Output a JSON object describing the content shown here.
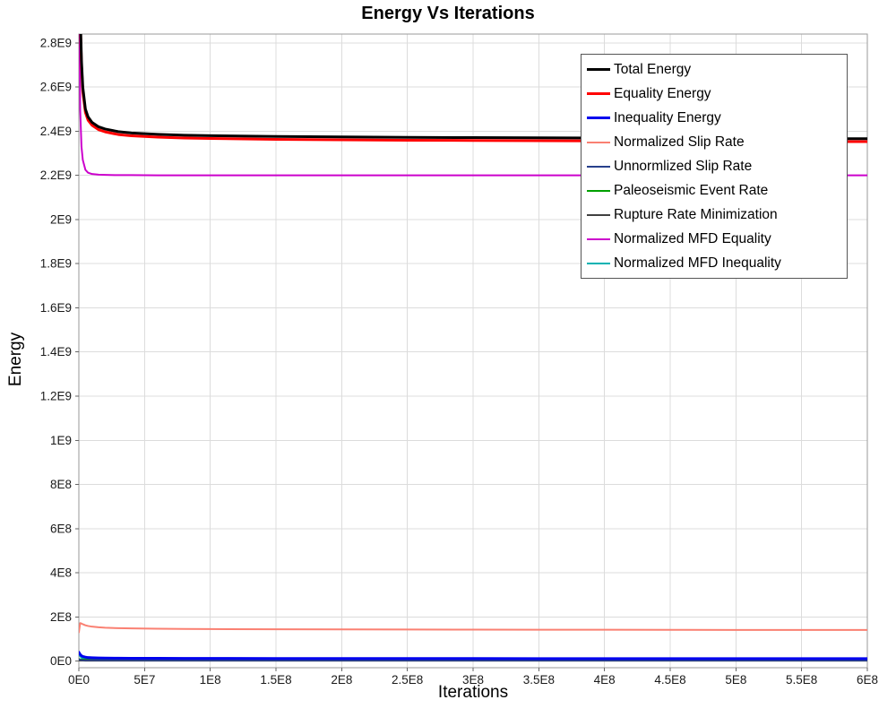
{
  "chart_data": {
    "type": "line",
    "title": "Energy Vs Iterations",
    "xlabel": "Iterations",
    "ylabel": "Energy",
    "xlim": [
      0,
      600000000.0
    ],
    "ylim": [
      -30000000.0,
      2840000000.0
    ],
    "grid": true,
    "legend_position": "top-right-inside",
    "x_ticks": {
      "values": [
        0,
        50000000.0,
        100000000.0,
        150000000.0,
        200000000.0,
        250000000.0,
        300000000.0,
        350000000.0,
        400000000.0,
        450000000.0,
        500000000.0,
        550000000.0,
        600000000.0
      ],
      "labels": [
        "0E0",
        "5E7",
        "1E8",
        "1.5E8",
        "2E8",
        "2.5E8",
        "3E8",
        "3.5E8",
        "4E8",
        "4.5E8",
        "5E8",
        "5.5E8",
        "6E8"
      ]
    },
    "y_ticks": {
      "values": [
        0,
        200000000.0,
        400000000.0,
        600000000.0,
        800000000.0,
        1000000000.0,
        1200000000.0,
        1400000000.0,
        1600000000.0,
        1800000000.0,
        2000000000.0,
        2200000000.0,
        2400000000.0,
        2600000000.0,
        2800000000.0
      ],
      "labels": [
        "0E0",
        "2E8",
        "4E8",
        "6E8",
        "8E8",
        "1E9",
        "1.2E9",
        "1.4E9",
        "1.6E9",
        "1.8E9",
        "2E9",
        "2.2E9",
        "2.4E9",
        "2.6E9",
        "2.8E9"
      ]
    },
    "x": [
      0,
      1000000.0,
      2000000.0,
      3000000.0,
      5000000.0,
      7000000.0,
      10000000.0,
      15000000.0,
      20000000.0,
      30000000.0,
      40000000.0,
      60000000.0,
      80000000.0,
      100000000.0,
      150000000.0,
      200000000.0,
      250000000.0,
      300000000.0,
      350000000.0,
      400000000.0,
      450000000.0,
      500000000.0,
      550000000.0,
      600000000.0
    ],
    "series": [
      {
        "name": "Total Energy",
        "color": "#000000",
        "width": 3,
        "values": [
          3400000000.0,
          2950000000.0,
          2720000000.0,
          2600000000.0,
          2500000000.0,
          2465000000.0,
          2440000000.0,
          2420000000.0,
          2410000000.0,
          2398000000.0,
          2392000000.0,
          2386000000.0,
          2382000000.0,
          2380000000.0,
          2376000000.0,
          2374000000.0,
          2372000000.0,
          2371000000.0,
          2370000000.0,
          2369000000.0,
          2368000000.0,
          2367000000.0,
          2366000000.0,
          2366000000.0
        ]
      },
      {
        "name": "Equality Energy",
        "color": "#ff0000",
        "width": 3,
        "values": [
          3360000000.0,
          2920000000.0,
          2700000000.0,
          2580000000.0,
          2485000000.0,
          2450000000.0,
          2427000000.0,
          2407000000.0,
          2397000000.0,
          2385000000.0,
          2379000000.0,
          2373000000.0,
          2369000000.0,
          2367000000.0,
          2363000000.0,
          2361000000.0,
          2359000000.0,
          2358000000.0,
          2357000000.0,
          2356000000.0,
          2355000000.0,
          2354000000.0,
          2353000000.0,
          2353000000.0
        ]
      },
      {
        "name": "Inequality Energy",
        "color": "#0000ee",
        "width": 3,
        "values": [
          40000000.0,
          30000000.0,
          24000000.0,
          21000000.0,
          18000000.0,
          16000000.0,
          15000000.0,
          14000000.0,
          13500000.0,
          13000000.0,
          12800000.0,
          12500000.0,
          12200000.0,
          12000000.0,
          11800000.0,
          11600000.0,
          11500000.0,
          11400000.0,
          11300000.0,
          11200000.0,
          11100000.0,
          11000000.0,
          11000000.0,
          11000000.0
        ]
      },
      {
        "name": "Normalized Slip Rate",
        "color": "#fa8072",
        "width": 2,
        "values": [
          130000000.0,
          172000000.0,
          170000000.0,
          167000000.0,
          162000000.0,
          159000000.0,
          156000000.0,
          153000000.0,
          151000000.0,
          149000000.0,
          148000000.0,
          146500000.0,
          145500000.0,
          145000000.0,
          144000000.0,
          143500000.0,
          143000000.0,
          142500000.0,
          142000000.0,
          141800000.0,
          141500000.0,
          141200000.0,
          141000000.0,
          141000000.0
        ]
      },
      {
        "name": "Unnormlized Slip Rate",
        "color": "#27408b",
        "width": 2,
        "values": [
          8000000.0,
          6000000.0,
          5000000.0,
          4500000.0,
          4200000.0,
          4000000.0,
          3800000.0,
          3600000.0,
          3500000.0,
          3400000.0,
          3300000.0,
          3200000.0,
          3200000.0,
          3100000.0,
          3100000.0,
          3000000.0,
          3000000.0,
          3000000.0,
          3000000.0,
          3000000.0,
          3000000.0,
          3000000.0,
          3000000.0,
          3000000.0
        ]
      },
      {
        "name": "Paleoseismic Event Rate",
        "color": "#00a000",
        "width": 2,
        "values": [
          9000000.0,
          7500000.0,
          7200000.0,
          7000000.0,
          6800000.0,
          6700000.0,
          6600000.0,
          6500000.0,
          6400000.0,
          6300000.0,
          6300000.0,
          6200000.0,
          6200000.0,
          6100000.0,
          6100000.0,
          6000000.0,
          6000000.0,
          6000000.0,
          6000000.0,
          6000000.0,
          6000000.0,
          6000000.0,
          6000000.0,
          6000000.0
        ]
      },
      {
        "name": "Rupture Rate Minimization",
        "color": "#404040",
        "width": 2,
        "values": [
          3000000.0,
          2600000.0,
          2400000.0,
          2300000.0,
          2200000.0,
          2200000.0,
          2100000.0,
          2100000.0,
          2100000.0,
          2000000.0,
          2000000.0,
          2000000.0,
          2000000.0,
          2000000.0,
          2000000.0,
          2000000.0,
          2000000.0,
          2000000.0,
          2000000.0,
          2000000.0,
          2000000.0,
          2000000.0,
          2000000.0,
          2000000.0
        ]
      },
      {
        "name": "Normalized MFD Equality",
        "color": "#cc00cc",
        "width": 2,
        "values": [
          3300000000.0,
          2500000000.0,
          2330000000.0,
          2270000000.0,
          2225000000.0,
          2212000000.0,
          2206000000.0,
          2203000000.0,
          2202000000.0,
          2201000000.0,
          2201000000.0,
          2200000000.0,
          2200000000.0,
          2200000000.0,
          2200000000.0,
          2200000000.0,
          2200000000.0,
          2200000000.0,
          2200000000.0,
          2200000000.0,
          2200000000.0,
          2200000000.0,
          2200000000.0,
          2200000000.0
        ]
      },
      {
        "name": "Normalized MFD Inequality",
        "color": "#00b2b2",
        "width": 2,
        "values": [
          32000000.0,
          22000000.0,
          16000000.0,
          13000000.0,
          10000000.0,
          9000000.0,
          8000000.0,
          7000000.0,
          6500000.0,
          6000000.0,
          5800000.0,
          5500000.0,
          5300000.0,
          5200000.0,
          5000000.0,
          5000000.0,
          5000000.0,
          5000000.0,
          5000000.0,
          5000000.0,
          5000000.0,
          5000000.0,
          5000000.0,
          5000000.0
        ]
      }
    ]
  }
}
